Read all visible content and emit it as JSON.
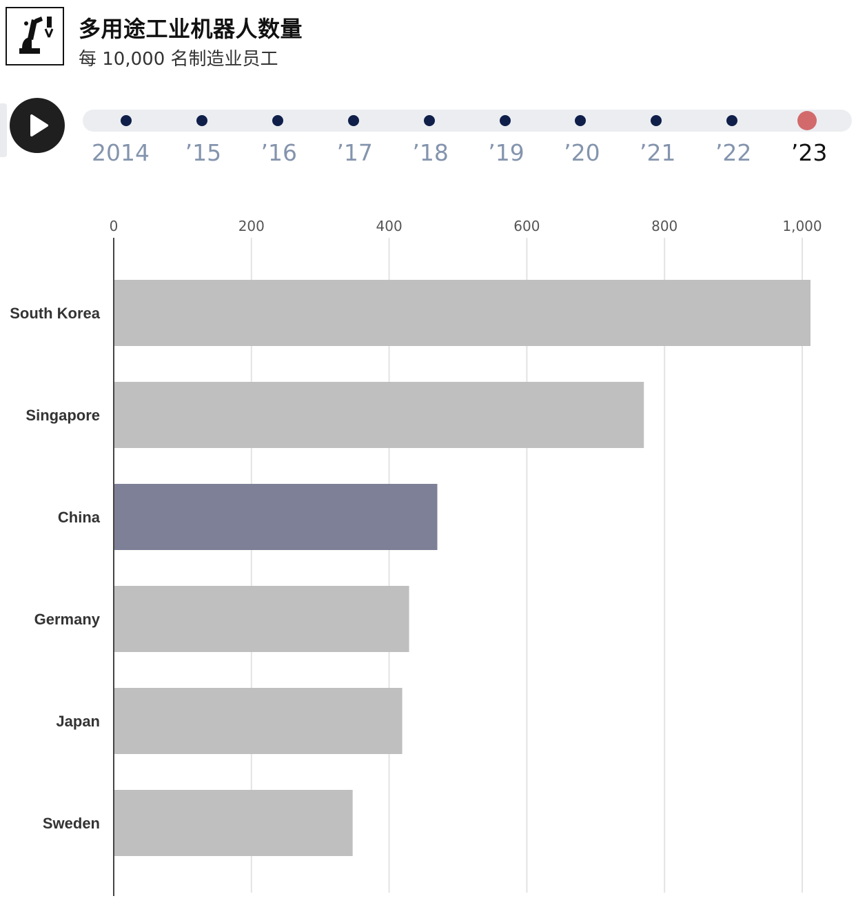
{
  "header": {
    "title": "多用途工业机器人数量",
    "subtitle": "每 10,000 名制造业员工",
    "icon": "industrial-robot-arm-icon"
  },
  "player": {
    "play_icon": "play-icon",
    "years": [
      "2014",
      "’15",
      "’16",
      "’17",
      "’18",
      "’19",
      "’20",
      "’21",
      "’22",
      "’23"
    ],
    "active_index": 9,
    "colors": {
      "tick": "#0f1f4a",
      "active": "#d26a6c",
      "label": "#8494ad",
      "active_label": "#111111"
    }
  },
  "chart_data": {
    "type": "bar",
    "orientation": "horizontal",
    "categories": [
      "South Korea",
      "Singapore",
      "China",
      "Germany",
      "Japan",
      "Sweden"
    ],
    "values": [
      1012,
      770,
      470,
      429,
      419,
      347
    ],
    "highlight": "China",
    "colors": {
      "default": "#bfbfbf",
      "highlight": "#7d8096"
    },
    "xlim": [
      0,
      1000
    ],
    "xticks": [
      0,
      200,
      400,
      600,
      800,
      1000
    ],
    "xtick_labels": [
      "0",
      "200",
      "400",
      "600",
      "800",
      "1,000"
    ],
    "grid": true
  }
}
